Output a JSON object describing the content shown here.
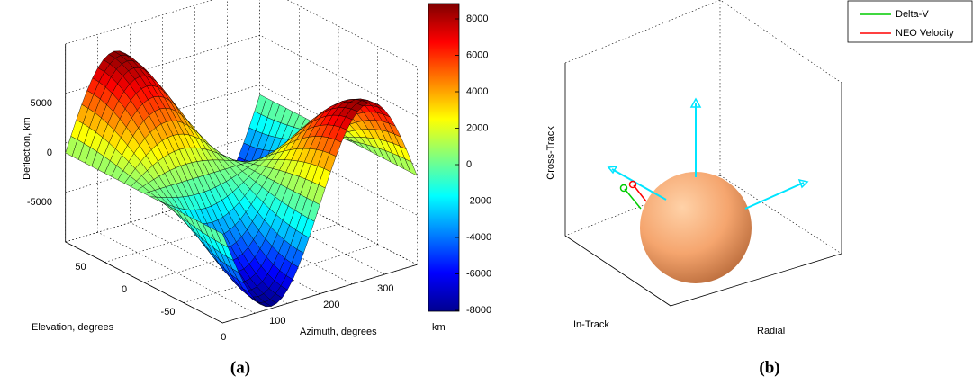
{
  "panel_a": {
    "z_axis_label": "Deflection, km",
    "z_ticks": [
      5000,
      0,
      -5000
    ],
    "elevation_label": "Elevation, degrees",
    "elevation_ticks": [
      50,
      0,
      -50
    ],
    "azimuth_label": "Azimuth, degrees",
    "azimuth_ticks": [
      0,
      100,
      200,
      300
    ],
    "colorbar_ticks": [
      8000,
      6000,
      4000,
      2000,
      0,
      -2000,
      -4000,
      -6000,
      -8000
    ],
    "colorbar_unit": "km",
    "caption": "(a)"
  },
  "panel_b": {
    "cross_track_label": "Cross-Track",
    "in_track_label": "In-Track",
    "radial_label": "Radial",
    "legend": [
      {
        "label": "Delta-V",
        "color": "#00cc00"
      },
      {
        "label": "NEO Velocity",
        "color": "#ff0000"
      }
    ],
    "caption": "(b)"
  }
}
